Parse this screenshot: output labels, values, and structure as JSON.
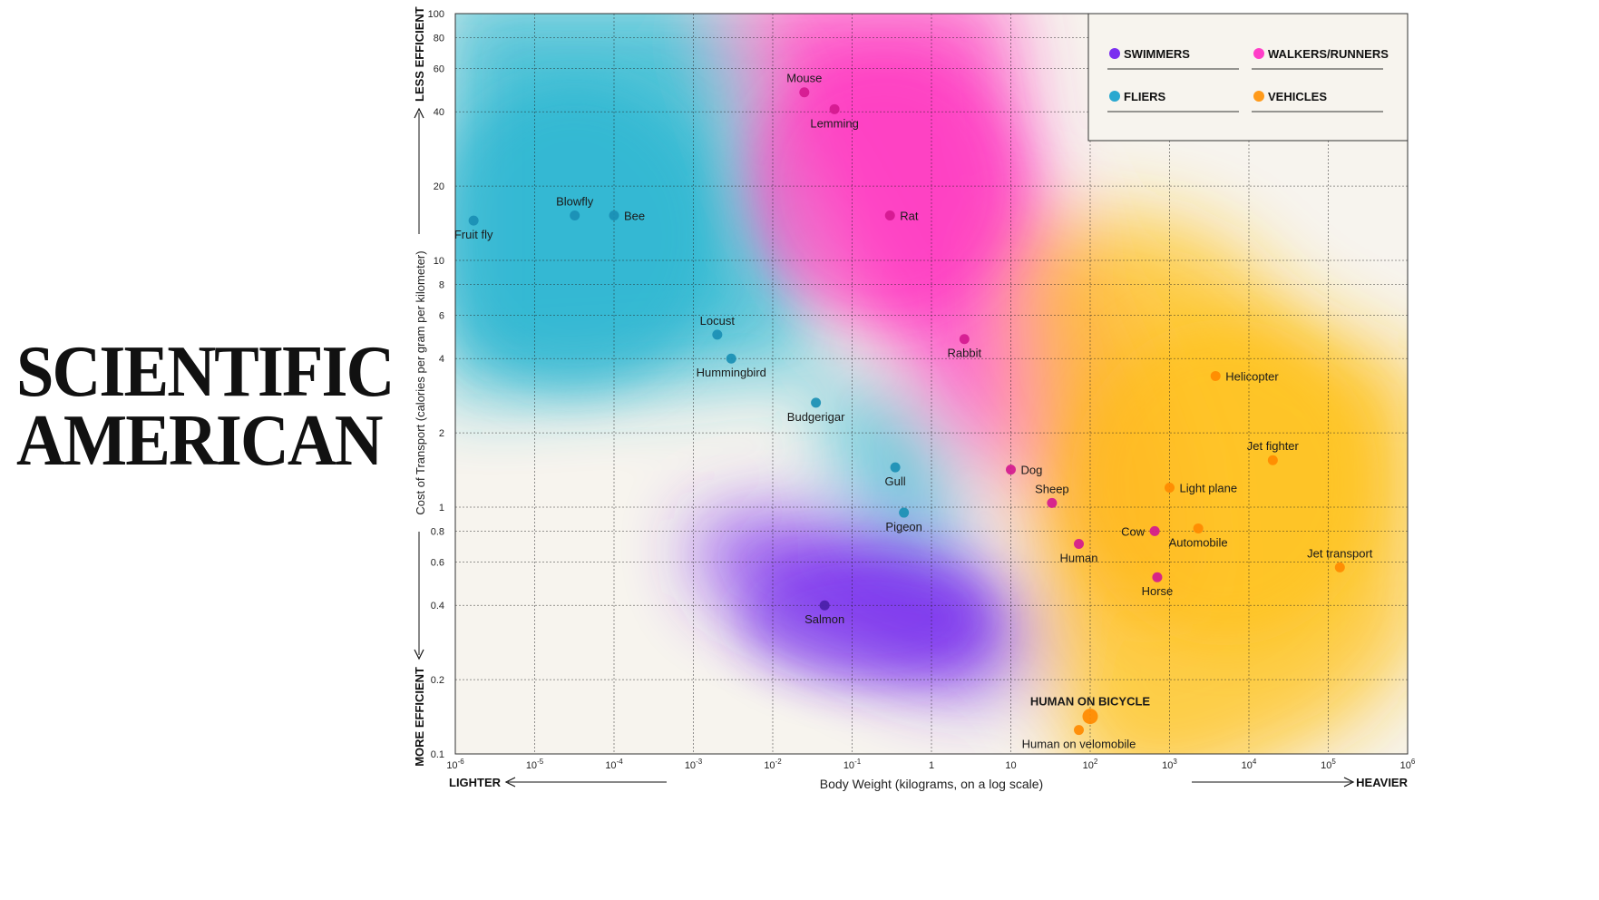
{
  "brand": {
    "line1": "SCIENTIFIC",
    "line2": "AMERICAN"
  },
  "chart_data": {
    "type": "scatter",
    "xlabel": "Body Weight (kilograms, on a log scale)",
    "ylabel": "Cost of Transport (calories per gram per kilometer)",
    "xscale": "log",
    "yscale": "log",
    "xlim": [
      1e-06,
      1000000
    ],
    "ylim": [
      0.1,
      100
    ],
    "x_ticks": [
      {
        "v": 1e-06,
        "base": "10",
        "exp": "-6"
      },
      {
        "v": 1e-05,
        "base": "10",
        "exp": "-5"
      },
      {
        "v": 0.0001,
        "base": "10",
        "exp": "-4"
      },
      {
        "v": 0.001,
        "base": "10",
        "exp": "-3"
      },
      {
        "v": 0.01,
        "base": "10",
        "exp": "-2"
      },
      {
        "v": 0.1,
        "base": "10",
        "exp": "-1"
      },
      {
        "v": 1,
        "base": "1",
        "exp": ""
      },
      {
        "v": 10,
        "base": "10",
        "exp": ""
      },
      {
        "v": 100,
        "base": "10",
        "exp": "2"
      },
      {
        "v": 1000,
        "base": "10",
        "exp": "3"
      },
      {
        "v": 10000,
        "base": "10",
        "exp": "4"
      },
      {
        "v": 100000,
        "base": "10",
        "exp": "5"
      },
      {
        "v": 1000000,
        "base": "10",
        "exp": "6"
      }
    ],
    "y_ticks": [
      {
        "v": 0.1,
        "label": "0.1"
      },
      {
        "v": 0.2,
        "label": "0.2"
      },
      {
        "v": 0.4,
        "label": "0.4"
      },
      {
        "v": 0.6,
        "label": "0.6"
      },
      {
        "v": 0.8,
        "label": "0.8"
      },
      {
        "v": 1,
        "label": "1"
      },
      {
        "v": 2,
        "label": "2"
      },
      {
        "v": 4,
        "label": "4"
      },
      {
        "v": 6,
        "label": "6"
      },
      {
        "v": 8,
        "label": "8"
      },
      {
        "v": 10,
        "label": "10"
      },
      {
        "v": 20,
        "label": "20"
      },
      {
        "v": 40,
        "label": "40"
      },
      {
        "v": 60,
        "label": "60"
      },
      {
        "v": 80,
        "label": "80"
      },
      {
        "v": 100,
        "label": "100"
      }
    ],
    "legend": [
      {
        "key": "swimmers",
        "label": "SWIMMERS",
        "color": "#7b2ff0"
      },
      {
        "key": "walkers",
        "label": "WALKERS/RUNNERS",
        "color": "#ff3ec8"
      },
      {
        "key": "fliers",
        "label": "FLIERS",
        "color": "#2aa8d0"
      },
      {
        "key": "vehicles",
        "label": "VEHICLES",
        "color": "#ff9a1a"
      }
    ],
    "legend_position": "top-right",
    "annotations": {
      "less_efficient": "LESS EFFICIENT",
      "more_efficient": "MORE EFFICIENT",
      "lighter": "LIGHTER",
      "heavier": "HEAVIER"
    },
    "points": [
      {
        "name": "Fruit fly",
        "x": 1.7e-06,
        "y": 14.5,
        "cat": "fliers",
        "lp": "b"
      },
      {
        "name": "Blowfly",
        "x": 3.2e-05,
        "y": 15.2,
        "cat": "fliers",
        "lp": "t"
      },
      {
        "name": "Bee",
        "x": 0.0001,
        "y": 15.2,
        "cat": "fliers",
        "lp": "r"
      },
      {
        "name": "Locust",
        "x": 0.002,
        "y": 5.0,
        "cat": "fliers",
        "lp": "t"
      },
      {
        "name": "Hummingbird",
        "x": 0.003,
        "y": 4.0,
        "cat": "fliers",
        "lp": "b"
      },
      {
        "name": "Budgerigar",
        "x": 0.035,
        "y": 2.65,
        "cat": "fliers",
        "lp": "b"
      },
      {
        "name": "Gull",
        "x": 0.35,
        "y": 1.45,
        "cat": "fliers",
        "lp": "b"
      },
      {
        "name": "Pigeon",
        "x": 0.45,
        "y": 0.95,
        "cat": "fliers",
        "lp": "b"
      },
      {
        "name": "Salmon",
        "x": 0.045,
        "y": 0.4,
        "cat": "swimmers",
        "lp": "b"
      },
      {
        "name": "Mouse",
        "x": 0.025,
        "y": 48,
        "cat": "walkers",
        "lp": "t"
      },
      {
        "name": "Lemming",
        "x": 0.06,
        "y": 41,
        "cat": "walkers",
        "lp": "b"
      },
      {
        "name": "Rat",
        "x": 0.3,
        "y": 15.2,
        "cat": "walkers",
        "lp": "r"
      },
      {
        "name": "Rabbit",
        "x": 2.6,
        "y": 4.8,
        "cat": "walkers",
        "lp": "b"
      },
      {
        "name": "Dog",
        "x": 10,
        "y": 1.42,
        "cat": "walkers",
        "lp": "r"
      },
      {
        "name": "Sheep",
        "x": 33,
        "y": 1.04,
        "cat": "walkers",
        "lp": "t"
      },
      {
        "name": "Human",
        "x": 72,
        "y": 0.71,
        "cat": "walkers",
        "lp": "b"
      },
      {
        "name": "Cow",
        "x": 650,
        "y": 0.8,
        "cat": "walkers",
        "lp": "l"
      },
      {
        "name": "Horse",
        "x": 700,
        "y": 0.52,
        "cat": "walkers",
        "lp": "b"
      },
      {
        "name": "Helicopter",
        "x": 3800,
        "y": 3.4,
        "cat": "vehicles",
        "lp": "r"
      },
      {
        "name": "Jet fighter",
        "x": 20000,
        "y": 1.55,
        "cat": "vehicles",
        "lp": "t"
      },
      {
        "name": "Light plane",
        "x": 1000,
        "y": 1.2,
        "cat": "vehicles",
        "lp": "r"
      },
      {
        "name": "Automobile",
        "x": 2300,
        "y": 0.82,
        "cat": "vehicles",
        "lp": "b"
      },
      {
        "name": "Jet transport",
        "x": 140000,
        "y": 0.57,
        "cat": "vehicles",
        "lp": "t"
      },
      {
        "name": "HUMAN ON BICYCLE",
        "x": 100,
        "y": 0.142,
        "cat": "vehicles",
        "lp": "t",
        "big": true
      },
      {
        "name": "Human on velomobile",
        "x": 72,
        "y": 0.125,
        "cat": "vehicles",
        "lp": "b"
      }
    ]
  }
}
